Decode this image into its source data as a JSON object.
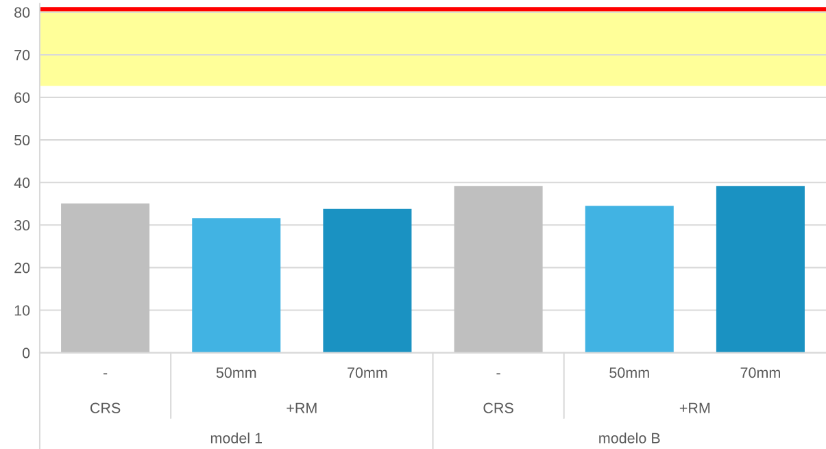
{
  "chart_data": {
    "type": "bar",
    "categories": [
      "-",
      "50mm",
      "70mm",
      "-",
      "50mm",
      "70mm"
    ],
    "values": [
      35.1,
      31.6,
      33.8,
      39.2,
      34.5,
      39.2
    ],
    "colors": [
      "#bfbfbf",
      "#41b3e3",
      "#1a92c2",
      "#bfbfbf",
      "#41b3e3",
      "#1a92c2"
    ],
    "ylim": [
      0,
      82
    ],
    "yticks": [
      0,
      10,
      20,
      30,
      40,
      50,
      60,
      70,
      80
    ],
    "grid": "y",
    "bands": [
      {
        "axis": "y",
        "from": 62.7,
        "to": 80.5,
        "color": "#ffff99"
      },
      {
        "axis": "y",
        "from": 80.2,
        "to": 81.2,
        "color": "#ff0000"
      }
    ],
    "annotations": [
      "CRS",
      "+RM",
      "CRS",
      "+RM",
      "model 1",
      "modelo B"
    ]
  }
}
